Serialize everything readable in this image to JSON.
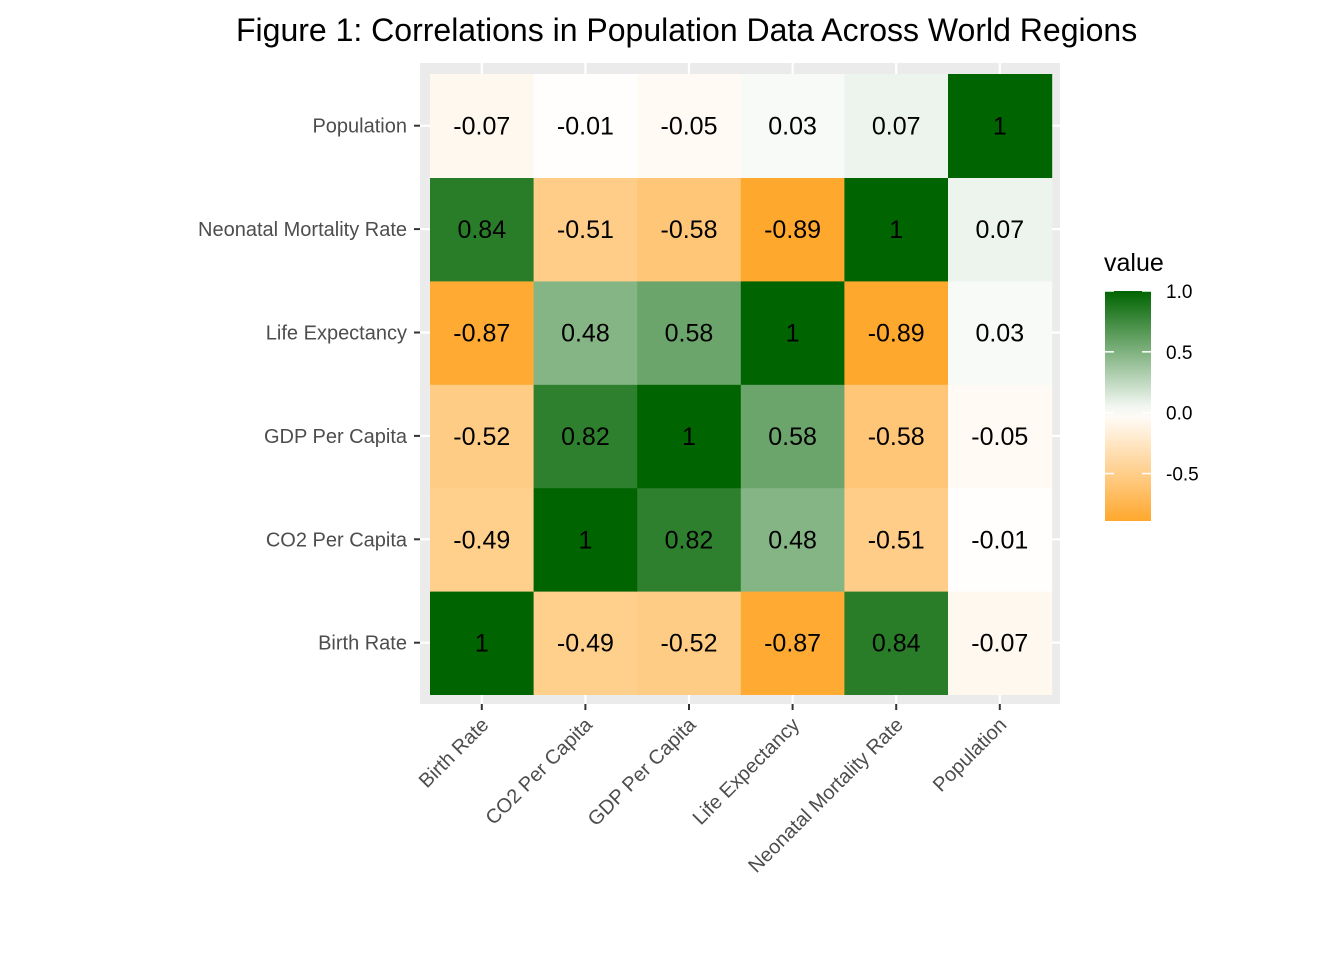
{
  "chart_data": {
    "type": "heatmap",
    "title": "Figure 1: Correlations in Population Data Across World Regions",
    "xlabel": "",
    "ylabel": "",
    "x_categories": [
      "Birth Rate",
      "CO2 Per Capita",
      "GDP Per Capita",
      "Life Expectancy",
      "Neonatal Mortality Rate",
      "Population"
    ],
    "y_categories": [
      "Birth Rate",
      "CO2 Per Capita",
      "GDP Per Capita",
      "Life Expectancy",
      "Neonatal Mortality Rate",
      "Population"
    ],
    "values": [
      [
        1,
        -0.49,
        -0.52,
        -0.87,
        0.84,
        -0.07
      ],
      [
        -0.49,
        1,
        0.82,
        0.48,
        -0.51,
        -0.01
      ],
      [
        -0.52,
        0.82,
        1,
        0.58,
        -0.58,
        -0.05
      ],
      [
        -0.87,
        0.48,
        0.58,
        1,
        -0.89,
        0.03
      ],
      [
        0.84,
        -0.51,
        -0.58,
        -0.89,
        1,
        0.07
      ],
      [
        -0.07,
        -0.01,
        -0.05,
        0.03,
        0.07,
        1
      ]
    ],
    "legend": {
      "title": "value",
      "position": "right",
      "ticks": [
        1.0,
        0.5,
        0.0,
        -0.5
      ],
      "tick_labels": [
        "1.0",
        "0.5",
        "0.0",
        "-0.5"
      ],
      "range": [
        -0.89,
        1.0
      ]
    },
    "colors": {
      "low": "#ffa82e",
      "mid": "#ffffff",
      "high": "#006400",
      "panel": "#ebebeb",
      "gridline": "#ffffff",
      "tick_text": "#4d4d4d"
    },
    "grid": true
  }
}
